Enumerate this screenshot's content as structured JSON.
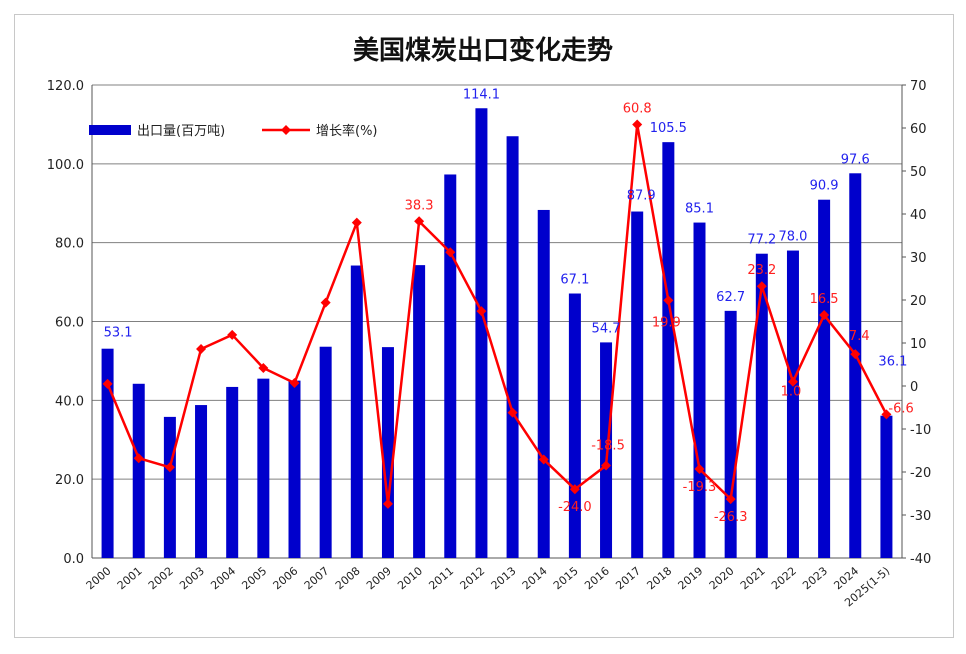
{
  "chart_data": {
    "type": "bar",
    "title": "美国煤炭出口变化走势",
    "categories": [
      "2000",
      "2001",
      "2002",
      "2003",
      "2004",
      "2005",
      "2006",
      "2007",
      "2008",
      "2009",
      "2010",
      "2011",
      "2012",
      "2013",
      "2014",
      "2015",
      "2016",
      "2017",
      "2018",
      "2019",
      "2020",
      "2021",
      "2022",
      "2023",
      "2024",
      "2025(1-5)"
    ],
    "series": [
      {
        "name": "出口量(百万吨)",
        "kind": "bar",
        "axis": "left",
        "color": "#0000cc",
        "values": [
          53.1,
          44.2,
          35.8,
          38.8,
          43.4,
          45.5,
          45.0,
          53.6,
          74.2,
          53.5,
          74.3,
          97.3,
          114.1,
          107.0,
          88.3,
          67.1,
          54.7,
          87.9,
          105.5,
          85.1,
          62.7,
          77.2,
          78.0,
          90.9,
          97.6,
          36.1
        ],
        "labels": {
          "0": "53.1",
          "12": "114.1",
          "15": "67.1",
          "16": "54.7",
          "17": "87.9",
          "18": "105.5",
          "19": "85.1",
          "20": "62.7",
          "21": "77.2",
          "22": "78.0",
          "23": "90.9",
          "24": "97.6",
          "25": "36.1"
        }
      },
      {
        "name": "增长率(%)",
        "kind": "line",
        "axis": "right",
        "color": "#ff0000",
        "values": [
          0.5,
          -16.8,
          -18.9,
          8.6,
          11.9,
          4.2,
          0.7,
          19.4,
          38.0,
          -27.4,
          38.3,
          31.1,
          17.4,
          -6.2,
          -17.1,
          -24.0,
          -18.5,
          60.8,
          19.9,
          -19.3,
          -26.3,
          23.2,
          1.0,
          16.5,
          7.4,
          -6.6
        ],
        "labels": {
          "10": "38.3",
          "15": "-24.0",
          "16": "-18.5",
          "17": "60.8",
          "18": "19.9",
          "19": "-19.3",
          "20": "-26.3",
          "21": "23.2",
          "22": "1.0",
          "23": "16.5",
          "24": "7.4",
          "25": "-6.6"
        }
      }
    ],
    "y_left": {
      "min": 0,
      "max": 120,
      "step": 20,
      "ticks": [
        "0.0",
        "20.0",
        "40.0",
        "60.0",
        "80.0",
        "100.0",
        "120.0"
      ]
    },
    "y_right": {
      "min": -40,
      "max": 70,
      "step": 10,
      "ticks": [
        "-40",
        "-30",
        "-20",
        "-10",
        "0",
        "10",
        "20",
        "30",
        "40",
        "50",
        "60",
        "70"
      ]
    },
    "grid": true,
    "legend": "top-left"
  }
}
